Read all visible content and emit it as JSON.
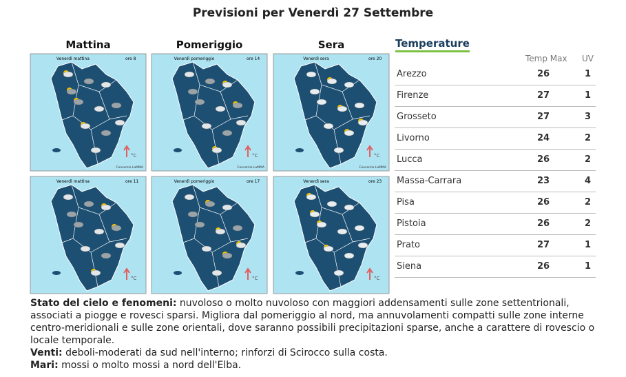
{
  "title": "Previsioni per Venerdì 27 Settembre",
  "columns": [
    {
      "header": "Mattina",
      "maps": [
        {
          "label": "Venerdì mattina",
          "time": "ore 8",
          "unit": "°C",
          "credit": "Consorzio LaMMA"
        },
        {
          "label": "Venerdì mattina",
          "time": "ore 11",
          "unit": "°C"
        }
      ]
    },
    {
      "header": "Pomeriggio",
      "maps": [
        {
          "label": "Venerdì pomeriggio",
          "time": "ore 14",
          "unit": "°C",
          "credit": "Consorzio LaMMA"
        },
        {
          "label": "Venerdì pomeriggio",
          "time": "ore 17",
          "unit": "°C"
        }
      ]
    },
    {
      "header": "Sera",
      "maps": [
        {
          "label": "Venerdì sera",
          "time": "ore 20",
          "unit": "°C",
          "credit": "Consorzio LaMMA"
        },
        {
          "label": "Venerdì sera",
          "time": "ore 23",
          "unit": "°C"
        }
      ]
    }
  ],
  "temperatures": {
    "title": "Temperature",
    "headers": [
      "Temp Max",
      "UV"
    ],
    "rows": [
      [
        "Arezzo",
        26,
        1
      ],
      [
        "Firenze",
        27,
        1
      ],
      [
        "Grosseto",
        27,
        3
      ],
      [
        "Livorno",
        24,
        2
      ],
      [
        "Lucca",
        26,
        2
      ],
      [
        "Massa-Carrara",
        23,
        4
      ],
      [
        "Pisa",
        26,
        2
      ],
      [
        "Pistoia",
        26,
        2
      ],
      [
        "Prato",
        27,
        1
      ],
      [
        "Siena",
        26,
        1
      ]
    ]
  },
  "bulletin": [
    {
      "label": "Stato del cielo e fenomeni:",
      "text": "nuvoloso o molto nuvoloso con maggiori addensamenti sulle zone settentrionali, associati a piogge e rovesci sparsi. Migliora dal pomeriggio al nord, ma annuvolamenti compatti sulle zone interne centro-meridionali e sulle zone orientali, dove saranno possibili precipitazioni sparse, anche a carattere di rovescio o locale temporale."
    },
    {
      "label": "Venti:",
      "text": "deboli-moderati da sud nell'interno; rinforzi di Scirocco sulla costa."
    },
    {
      "label": "Mari:",
      "text": "mossi o molto mossi a nord dell'Elba."
    }
  ]
}
